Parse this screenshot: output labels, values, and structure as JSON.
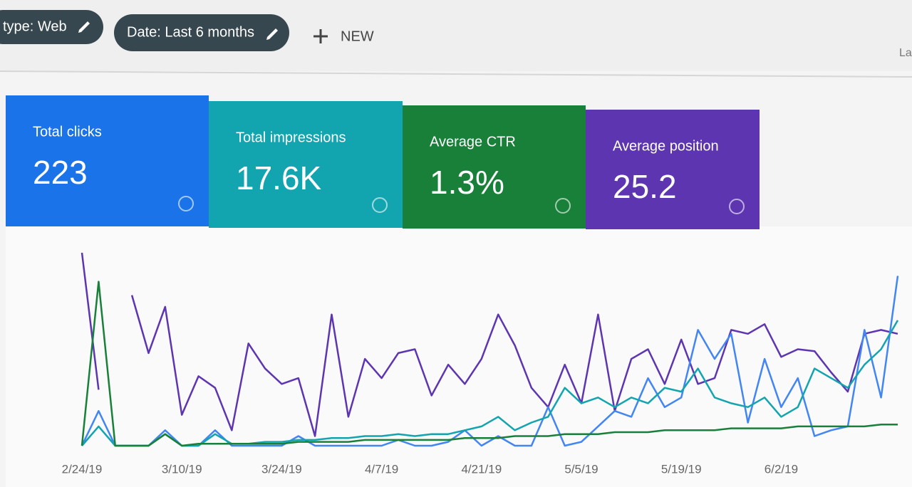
{
  "toolbar": {
    "filters": [
      "type: Web",
      "Date: Last 6 months"
    ],
    "new_button": "NEW",
    "right_text": "La"
  },
  "cards": [
    {
      "label": "Total clicks",
      "value": "223",
      "color": "#1a73e8"
    },
    {
      "label": "Total impressions",
      "value": "17.6K",
      "color": "#12a4af"
    },
    {
      "label": "Average CTR",
      "value": "1.3%",
      "color": "#188038"
    },
    {
      "label": "Average position",
      "value": "25.2",
      "color": "#5e35b1"
    }
  ],
  "chart_data": {
    "type": "line",
    "categories": [
      "2/24/19",
      null,
      null,
      null,
      null,
      null,
      "3/10/19",
      null,
      null,
      null,
      null,
      null,
      "3/24/19",
      null,
      null,
      null,
      null,
      null,
      "4/7/19",
      null,
      null,
      null,
      null,
      null,
      "4/21/19",
      null,
      null,
      null,
      null,
      null,
      "5/5/19",
      null,
      null,
      null,
      null,
      null,
      "5/19/19",
      null,
      null,
      null,
      null,
      null,
      "6/2/19",
      null,
      null,
      null,
      null,
      null,
      null,
      null
    ],
    "ylim": [
      0,
      100
    ],
    "series": [
      {
        "color": "#5e35b1",
        "values": [
          100,
          29,
          null,
          78,
          48,
          72,
          16,
          36,
          30,
          8,
          53,
          40,
          32,
          35,
          5,
          68,
          15,
          45,
          35,
          48,
          50,
          26,
          42,
          32,
          45,
          68,
          52,
          30,
          20,
          42,
          22,
          68,
          18,
          45,
          50,
          32,
          55,
          32,
          35,
          60,
          58,
          63,
          46,
          50,
          49,
          38,
          28,
          58,
          60,
          58
        ]
      },
      {
        "color": "#4285f4",
        "values": [
          0,
          18,
          0,
          0,
          0,
          8,
          0,
          0,
          8,
          0,
          0,
          0,
          0,
          5,
          0,
          0,
          0,
          0,
          0,
          3,
          0,
          0,
          2,
          8,
          0,
          5,
          0,
          0,
          20,
          0,
          2,
          10,
          18,
          15,
          35,
          20,
          25,
          60,
          45,
          58,
          12,
          45,
          20,
          35,
          5,
          8,
          10,
          60,
          25,
          88
        ]
      },
      {
        "color": "#12a4af",
        "values": [
          0,
          10,
          0,
          0,
          0,
          6,
          0,
          0,
          6,
          1,
          1,
          2,
          2,
          3,
          3,
          4,
          4,
          5,
          5,
          6,
          5,
          6,
          6,
          8,
          10,
          15,
          8,
          12,
          15,
          30,
          22,
          25,
          20,
          25,
          22,
          30,
          28,
          40,
          25,
          22,
          20,
          25,
          15,
          20,
          40,
          35,
          30,
          42,
          50,
          65
        ]
      },
      {
        "color": "#188038",
        "values": [
          0,
          85,
          0,
          0,
          0,
          6,
          0,
          1,
          1,
          1,
          1,
          1,
          1,
          2,
          2,
          2,
          2,
          3,
          3,
          3,
          3,
          3,
          3,
          4,
          4,
          4,
          5,
          5,
          5,
          6,
          6,
          6,
          7,
          7,
          7,
          8,
          8,
          8,
          8,
          9,
          9,
          9,
          9,
          10,
          10,
          10,
          10,
          10,
          11,
          11
        ]
      }
    ]
  }
}
